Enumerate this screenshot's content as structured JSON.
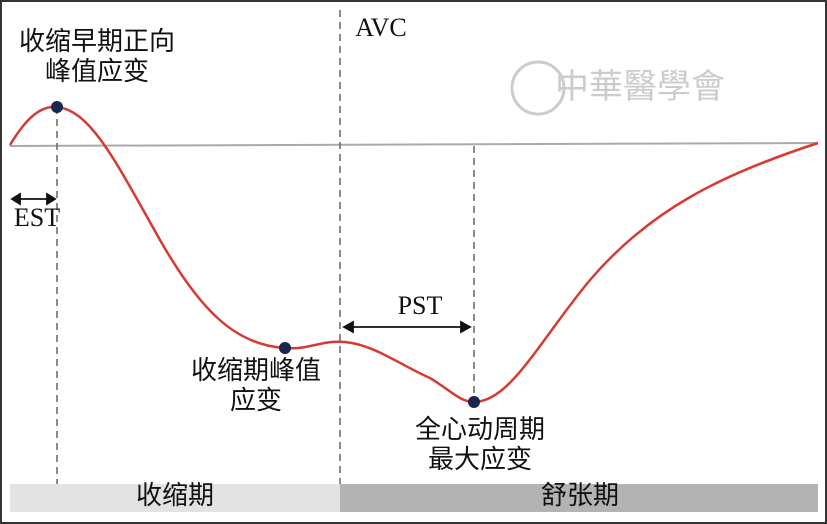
{
  "watermark": "中華醫學會",
  "labels": {
    "early_peak": [
      "收缩早期正向",
      "峰值应变"
    ],
    "avc": "AVC",
    "est": "EST",
    "pst": "PST",
    "systolic_peak": [
      "收缩期峰值",
      "应变"
    ],
    "global_peak": [
      "全心动周期",
      "最大应变"
    ]
  },
  "phases": {
    "systole": "收缩期",
    "diastole": "舒张期"
  }
}
